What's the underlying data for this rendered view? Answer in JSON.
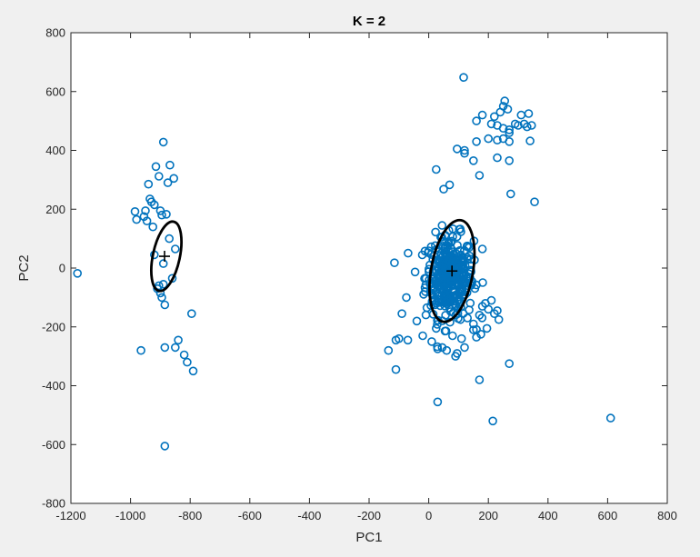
{
  "chart_data": {
    "type": "scatter",
    "title": "K = 2",
    "xlabel": "PC1",
    "ylabel": "PC2",
    "xlim": [
      -1200,
      800
    ],
    "ylim": [
      -800,
      800
    ],
    "xticks": [
      "-1200",
      "-1000",
      "-800",
      "-600",
      "-400",
      "-200",
      "0",
      "200",
      "400",
      "600",
      "800"
    ],
    "yticks": [
      "-800",
      "-600",
      "-400",
      "-200",
      "0",
      "200",
      "400",
      "600",
      "800"
    ],
    "grid": false,
    "colors": {
      "points": "#0072bd",
      "ellipse": "#000000",
      "centroid": "#000000",
      "axes_bg": "#ffffff",
      "figure_bg": "#f0f0f0"
    },
    "centroids": [
      {
        "x": -886,
        "y": 40
      },
      {
        "x": 78,
        "y": -10
      }
    ],
    "ellipses": [
      {
        "cx": -880,
        "cy": 40,
        "rx": 120,
        "ry": 45,
        "angle_deg": 78
      },
      {
        "cx": 78,
        "cy": -10,
        "rx": 175,
        "ry": 70,
        "angle_deg": 80
      }
    ],
    "cluster_spreads": [
      {
        "cx": 70,
        "cy": -30,
        "sx": 40,
        "sy": 70,
        "n": 360
      }
    ],
    "points": [
      [
        -1178,
        -18
      ],
      [
        -985,
        192
      ],
      [
        -980,
        165
      ],
      [
        -955,
        175
      ],
      [
        -950,
        195
      ],
      [
        -945,
        160
      ],
      [
        -940,
        285
      ],
      [
        -935,
        235
      ],
      [
        -930,
        225
      ],
      [
        -925,
        140
      ],
      [
        -920,
        215
      ],
      [
        -915,
        345
      ],
      [
        -905,
        312
      ],
      [
        -900,
        195
      ],
      [
        -895,
        180
      ],
      [
        -890,
        428
      ],
      [
        -880,
        183
      ],
      [
        -875,
        290
      ],
      [
        -870,
        100
      ],
      [
        -868,
        350
      ],
      [
        -855,
        305
      ],
      [
        -850,
        65
      ],
      [
        -920,
        45
      ],
      [
        -910,
        -70
      ],
      [
        -905,
        -60
      ],
      [
        -900,
        -85
      ],
      [
        -895,
        -100
      ],
      [
        -890,
        15
      ],
      [
        -890,
        -55
      ],
      [
        -885,
        -125
      ],
      [
        -860,
        -35
      ],
      [
        -850,
        -270
      ],
      [
        -840,
        -245
      ],
      [
        -820,
        -295
      ],
      [
        -810,
        -320
      ],
      [
        -795,
        -155
      ],
      [
        -790,
        -350
      ],
      [
        -965,
        -280
      ],
      [
        -885,
        -270
      ],
      [
        -885,
        -605
      ],
      [
        117,
        648
      ],
      [
        255,
        568
      ],
      [
        250,
        550
      ],
      [
        265,
        540
      ],
      [
        240,
        530
      ],
      [
        220,
        515
      ],
      [
        180,
        520
      ],
      [
        160,
        500
      ],
      [
        210,
        490
      ],
      [
        230,
        485
      ],
      [
        250,
        475
      ],
      [
        270,
        470
      ],
      [
        290,
        490
      ],
      [
        300,
        485
      ],
      [
        320,
        490
      ],
      [
        330,
        480
      ],
      [
        335,
        525
      ],
      [
        345,
        485
      ],
      [
        310,
        520
      ],
      [
        270,
        460
      ],
      [
        250,
        440
      ],
      [
        270,
        430
      ],
      [
        230,
        435
      ],
      [
        200,
        440
      ],
      [
        160,
        430
      ],
      [
        95,
        405
      ],
      [
        120,
        400
      ],
      [
        120,
        390
      ],
      [
        150,
        365
      ],
      [
        170,
        315
      ],
      [
        230,
        375
      ],
      [
        270,
        365
      ],
      [
        340,
        432
      ],
      [
        355,
        225
      ],
      [
        275,
        252
      ],
      [
        70,
        283
      ],
      [
        50,
        268
      ],
      [
        25,
        335
      ],
      [
        180,
        65
      ],
      [
        -135,
        -280
      ],
      [
        -110,
        -245
      ],
      [
        -110,
        -345
      ],
      [
        -100,
        -240
      ],
      [
        -90,
        -155
      ],
      [
        -75,
        -100
      ],
      [
        -70,
        -245
      ],
      [
        -40,
        -180
      ],
      [
        -20,
        -230
      ],
      [
        10,
        -250
      ],
      [
        25,
        -205
      ],
      [
        30,
        -275
      ],
      [
        45,
        -270
      ],
      [
        60,
        -280
      ],
      [
        80,
        -230
      ],
      [
        90,
        -300
      ],
      [
        95,
        -290
      ],
      [
        110,
        -240
      ],
      [
        120,
        -270
      ],
      [
        150,
        -210
      ],
      [
        160,
        -235
      ],
      [
        175,
        -225
      ],
      [
        195,
        -205
      ],
      [
        230,
        -145
      ],
      [
        235,
        -175
      ],
      [
        220,
        -155
      ],
      [
        270,
        -325
      ],
      [
        170,
        -380
      ],
      [
        30,
        -455
      ],
      [
        215,
        -520
      ],
      [
        610,
        -510
      ],
      [
        -115,
        18
      ],
      [
        210,
        -110
      ],
      [
        190,
        -120
      ],
      [
        180,
        -130
      ],
      [
        200,
        -140
      ],
      [
        170,
        -160
      ],
      [
        130,
        -170
      ],
      [
        150,
        -190
      ]
    ]
  }
}
